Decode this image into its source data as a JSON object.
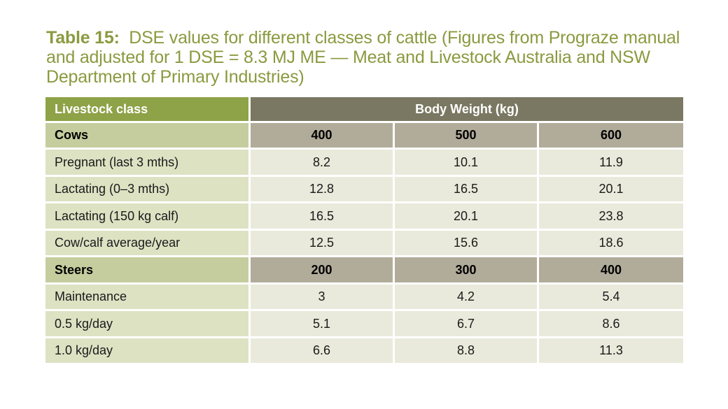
{
  "caption": {
    "label": "Table 15:",
    "text": "DSE values for different classes of cattle (Figures from Prograze manual and adjusted for 1 DSE = 8.3 MJ ME — Meat and Livestock Australia and NSW Department of Primary Industries)"
  },
  "table": {
    "header": {
      "class_label": "Livestock class",
      "weight_label": "Body Weight (kg)"
    },
    "sections": [
      {
        "name": "Cows",
        "weights": [
          "400",
          "500",
          "600"
        ],
        "rows": [
          {
            "label": "Pregnant (last 3 mths)",
            "values": [
              "8.2",
              "10.1",
              "11.9"
            ]
          },
          {
            "label": "Lactating (0–3 mths)",
            "values": [
              "12.8",
              "16.5",
              "20.1"
            ]
          },
          {
            "label": "Lactating (150 kg calf)",
            "values": [
              "16.5",
              "20.1",
              "23.8"
            ]
          },
          {
            "label": "Cow/calf average/year",
            "values": [
              "12.5",
              "15.6",
              "18.6"
            ]
          }
        ]
      },
      {
        "name": "Steers",
        "weights": [
          "200",
          "300",
          "400"
        ],
        "rows": [
          {
            "label": "Maintenance",
            "values": [
              "3",
              "4.2",
              "5.4"
            ]
          },
          {
            "label": "0.5 kg/day",
            "values": [
              "5.1",
              "6.7",
              "8.6"
            ]
          },
          {
            "label": "1.0 kg/day",
            "values": [
              "6.6",
              "8.8",
              "11.3"
            ]
          }
        ]
      }
    ]
  }
}
